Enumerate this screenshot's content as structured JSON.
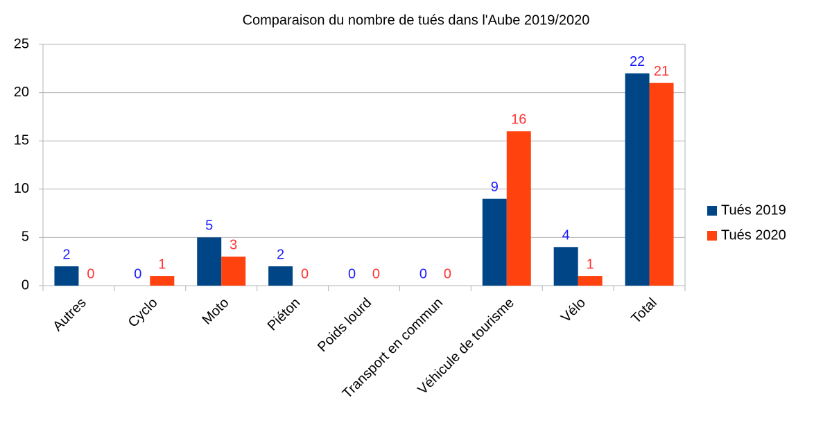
{
  "chart_data": {
    "type": "bar",
    "title": "Comparaison du nombre de tués dans l'Aube 2019/2020",
    "categories": [
      "Autres",
      "Cyclo",
      "Moto",
      "Piéton",
      "Poids lourd",
      "Transport en commun",
      "Véhicule de tourisme",
      "Vélo",
      "Total"
    ],
    "series": [
      {
        "name": "Tués 2019",
        "color": "#004586",
        "label_color": "#1a1aff",
        "values": [
          2,
          0,
          5,
          2,
          0,
          0,
          9,
          4,
          22
        ]
      },
      {
        "name": "Tués 2020",
        "color": "#ff420e",
        "label_color": "#ff3333",
        "values": [
          0,
          1,
          3,
          0,
          0,
          0,
          16,
          1,
          21
        ]
      }
    ],
    "ylim": [
      0,
      25
    ],
    "yticks": [
      0,
      5,
      10,
      15,
      20,
      25
    ],
    "grid": true,
    "legend": "right"
  }
}
